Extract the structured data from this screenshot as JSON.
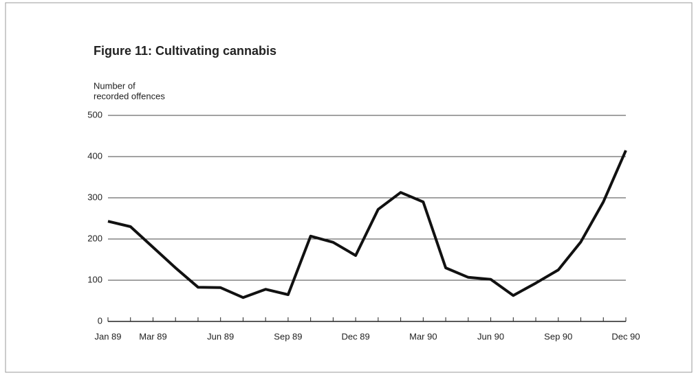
{
  "chart_data": {
    "type": "line",
    "title": "Figure 11:  Cultivating cannabis",
    "ylabel": [
      "Number of",
      "recorded offences"
    ],
    "categories": [
      "Jan 89",
      null,
      "Mar 89",
      null,
      null,
      "Jun 89",
      null,
      null,
      "Sep 89",
      null,
      null,
      "Dec 89",
      null,
      null,
      "Mar 90",
      null,
      null,
      "Jun 90",
      null,
      null,
      "Sep 90",
      null,
      null,
      "Dec 90"
    ],
    "values": [
      243,
      230,
      180,
      130,
      83,
      82,
      58,
      78,
      65,
      207,
      192,
      160,
      272,
      313,
      290,
      130,
      107,
      102,
      63,
      93,
      125,
      193,
      290,
      415
    ],
    "color": "#111111",
    "ylim": [
      0,
      500
    ],
    "yticks": [
      0,
      100,
      200,
      300,
      400,
      500
    ],
    "grid": true
  }
}
